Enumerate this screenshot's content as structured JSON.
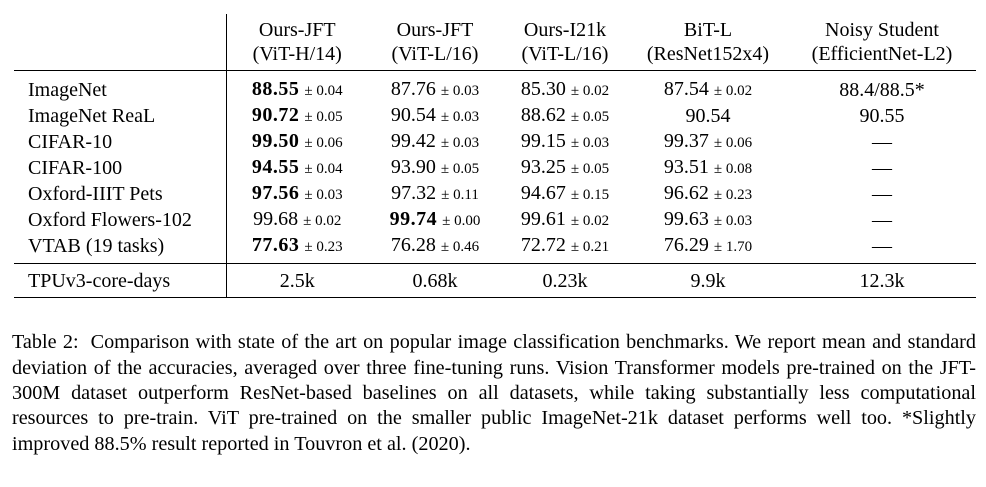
{
  "table": {
    "columns": [
      {
        "line1": "Ours-JFT",
        "line2": "(ViT-H/14)"
      },
      {
        "line1": "Ours-JFT",
        "line2": "(ViT-L/16)"
      },
      {
        "line1": "Ours-I21k",
        "line2": "(ViT-L/16)"
      },
      {
        "line1": "BiT-L",
        "line2": "(ResNet152x4)"
      },
      {
        "line1": "Noisy Student",
        "line2": "(EfficientNet-L2)"
      }
    ],
    "rows": [
      {
        "name": "ImageNet",
        "cells": [
          {
            "v": "88.55",
            "sd": "± 0.04",
            "best": true
          },
          {
            "v": "87.76",
            "sd": "± 0.03"
          },
          {
            "v": "85.30",
            "sd": "± 0.02"
          },
          {
            "v": "87.54",
            "sd": "± 0.02"
          },
          {
            "v": "88.4/88.5*",
            "sd": ""
          }
        ]
      },
      {
        "name": "ImageNet ReaL",
        "cells": [
          {
            "v": "90.72",
            "sd": "± 0.05",
            "best": true
          },
          {
            "v": "90.54",
            "sd": "± 0.03"
          },
          {
            "v": "88.62",
            "sd": "± 0.05"
          },
          {
            "v": "90.54",
            "sd": ""
          },
          {
            "v": "90.55",
            "sd": ""
          }
        ]
      },
      {
        "name": "CIFAR-10",
        "cells": [
          {
            "v": "99.50",
            "sd": "± 0.06",
            "best": true
          },
          {
            "v": "99.42",
            "sd": "± 0.03"
          },
          {
            "v": "99.15",
            "sd": "± 0.03"
          },
          {
            "v": "99.37",
            "sd": "± 0.06"
          },
          {
            "v": "—",
            "sd": ""
          }
        ]
      },
      {
        "name": "CIFAR-100",
        "cells": [
          {
            "v": "94.55",
            "sd": "± 0.04",
            "best": true
          },
          {
            "v": "93.90",
            "sd": "± 0.05"
          },
          {
            "v": "93.25",
            "sd": "± 0.05"
          },
          {
            "v": "93.51",
            "sd": "± 0.08"
          },
          {
            "v": "—",
            "sd": ""
          }
        ]
      },
      {
        "name": "Oxford-IIIT Pets",
        "cells": [
          {
            "v": "97.56",
            "sd": "± 0.03",
            "best": true
          },
          {
            "v": "97.32",
            "sd": "± 0.11"
          },
          {
            "v": "94.67",
            "sd": "± 0.15"
          },
          {
            "v": "96.62",
            "sd": "± 0.23"
          },
          {
            "v": "—",
            "sd": ""
          }
        ]
      },
      {
        "name": "Oxford Flowers-102",
        "cells": [
          {
            "v": "99.68",
            "sd": "± 0.02"
          },
          {
            "v": "99.74",
            "sd": "± 0.00",
            "best": true
          },
          {
            "v": "99.61",
            "sd": "± 0.02"
          },
          {
            "v": "99.63",
            "sd": "± 0.03"
          },
          {
            "v": "—",
            "sd": ""
          }
        ]
      },
      {
        "name": "VTAB (19 tasks)",
        "cells": [
          {
            "v": "77.63",
            "sd": "± 0.23",
            "best": true
          },
          {
            "v": "76.28",
            "sd": "± 0.46"
          },
          {
            "v": "72.72",
            "sd": "± 0.21"
          },
          {
            "v": "76.29",
            "sd": "± 1.70"
          },
          {
            "v": "—",
            "sd": ""
          }
        ]
      }
    ],
    "cost_row": {
      "name": "TPUv3-core-days",
      "values": [
        "2.5k",
        "0.68k",
        "0.23k",
        "9.9k",
        "12.3k"
      ]
    }
  },
  "caption": {
    "label": "Table 2:",
    "text": "Comparison with state of the art on popular image classification benchmarks. We report mean and standard deviation of the accuracies, averaged over three fine-tuning runs. Vision Transformer models pre-trained on the JFT-300M dataset outperform ResNet-based baselines on all datasets, while taking substantially less computational resources to pre-train. ViT pre-trained on the smaller public ImageNet-21k dataset performs well too. *Slightly improved 88.5% result reported in Touvron et al. (2020)."
  }
}
